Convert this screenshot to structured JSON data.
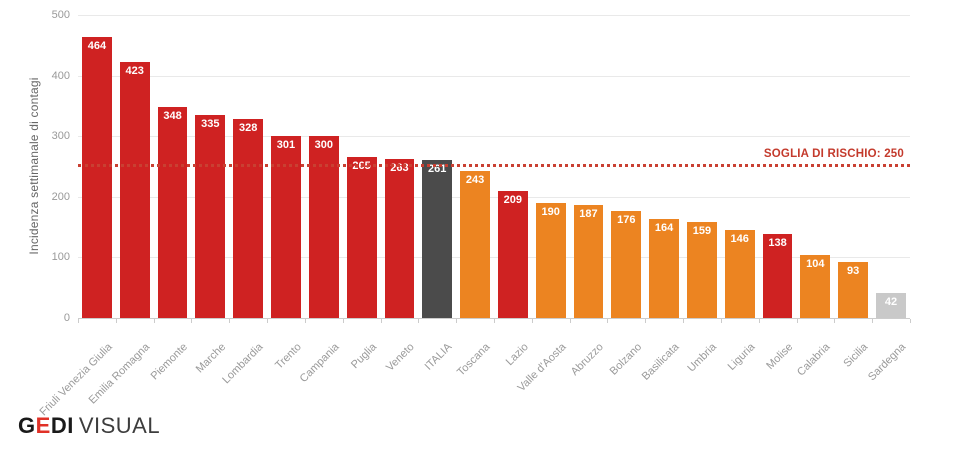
{
  "chart_data": {
    "type": "bar",
    "title": "",
    "xlabel": "",
    "ylabel": "Incidenza settimanale di contagi",
    "ylim": [
      0,
      500
    ],
    "yticks": [
      0,
      100,
      200,
      300,
      400,
      500
    ],
    "grid": true,
    "legend": "none",
    "threshold": {
      "value": 250,
      "label": "SOGLIA DI RISCHIO: 250"
    },
    "categories": [
      "Friuli Venezia Giulia",
      "Emilia Romagna",
      "Piemonte",
      "Marche",
      "Lombardia",
      "Trento",
      "Campania",
      "Puglia",
      "Veneto",
      "ITALIA",
      "Toscana",
      "Lazio",
      "Valle d'Aosta",
      "Abruzzo",
      "Bolzano",
      "Basilicata",
      "Umbria",
      "Liguria",
      "Molise",
      "Calabria",
      "Sicilia",
      "Sardegna"
    ],
    "values": [
      464,
      423,
      348,
      335,
      328,
      301,
      300,
      265,
      263,
      261,
      243,
      209,
      190,
      187,
      176,
      164,
      159,
      146,
      138,
      104,
      93,
      42
    ],
    "bar_colors": [
      "#cf2222",
      "#cf2222",
      "#cf2222",
      "#cf2222",
      "#cf2222",
      "#cf2222",
      "#cf2222",
      "#cf2222",
      "#cf2222",
      "#4b4b4b",
      "#ec8421",
      "#cf2222",
      "#ec8421",
      "#ec8421",
      "#ec8421",
      "#ec8421",
      "#ec8421",
      "#ec8421",
      "#cf2222",
      "#ec8421",
      "#ec8421",
      "#c9c9c9"
    ],
    "colors": {
      "red": "#cf2222",
      "orange": "#ec8421",
      "italia_dark": "#4b4b4b",
      "sardegna_gray": "#c9c9c9",
      "threshold_red": "#c94032",
      "value_label_text": "#ffffff"
    }
  },
  "footer": {
    "logo": {
      "g": "G",
      "e": "E",
      "di": "DI",
      "visual": "VISUAL"
    }
  }
}
